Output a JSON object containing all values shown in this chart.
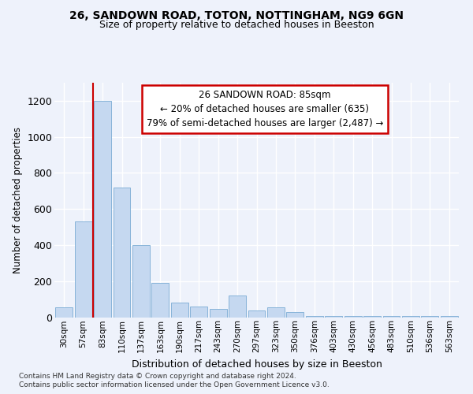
{
  "title1": "26, SANDOWN ROAD, TOTON, NOTTINGHAM, NG9 6GN",
  "title2": "Size of property relative to detached houses in Beeston",
  "xlabel": "Distribution of detached houses by size in Beeston",
  "ylabel": "Number of detached properties",
  "categories": [
    "30sqm",
    "57sqm",
    "83sqm",
    "110sqm",
    "137sqm",
    "163sqm",
    "190sqm",
    "217sqm",
    "243sqm",
    "270sqm",
    "297sqm",
    "323sqm",
    "350sqm",
    "376sqm",
    "403sqm",
    "430sqm",
    "456sqm",
    "483sqm",
    "510sqm",
    "536sqm",
    "563sqm"
  ],
  "values": [
    55,
    530,
    1200,
    720,
    400,
    190,
    80,
    60,
    45,
    120,
    35,
    55,
    30,
    5,
    5,
    5,
    5,
    5,
    5,
    5,
    5
  ],
  "bar_color": "#c5d8f0",
  "bar_edge_color": "#7aabd4",
  "vline_x_index": 2,
  "vline_color": "#cc0000",
  "annotation_text": "26 SANDOWN ROAD: 85sqm\n← 20% of detached houses are smaller (635)\n79% of semi-detached houses are larger (2,487) →",
  "annotation_box_color": "#ffffff",
  "annotation_box_edge": "#cc0000",
  "footer1": "Contains HM Land Registry data © Crown copyright and database right 2024.",
  "footer2": "Contains public sector information licensed under the Open Government Licence v3.0.",
  "bg_color": "#eef2fb",
  "plot_bg_color": "#eef2fb",
  "ylim": [
    0,
    1300
  ],
  "yticks": [
    0,
    200,
    400,
    600,
    800,
    1000,
    1200
  ]
}
